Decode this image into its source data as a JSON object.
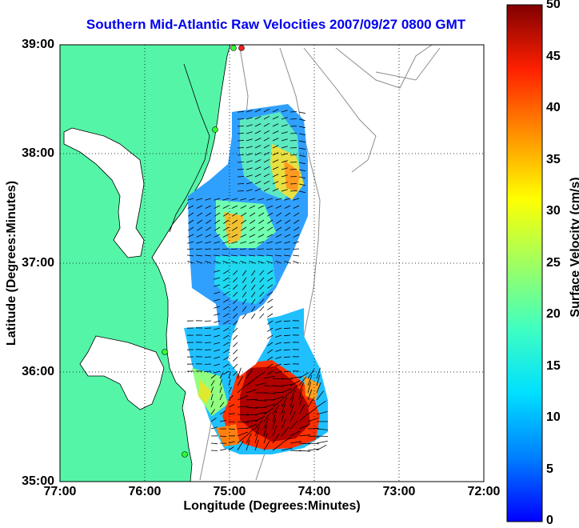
{
  "title": "Southern Mid-Atlantic Raw Velocities 2007/09/27 0800 GMT",
  "xlabel": "Longitude (Degrees:Minutes)",
  "ylabel": "Latitude (Degrees:Minutes)",
  "colorbar_label": "Surface Velocity (cm/s)",
  "x_ticks": [
    "77:00",
    "76:00",
    "75:00",
    "74:00",
    "73:00",
    "72:00"
  ],
  "y_ticks": [
    "39:00",
    "38:00",
    "37:00",
    "36:00",
    "35:00"
  ],
  "colorbar_ticks": [
    "50",
    "45",
    "40",
    "35",
    "30",
    "25",
    "20",
    "15",
    "10",
    "5",
    "0"
  ],
  "colors": {
    "land": "#55f5a8",
    "title": "#0000ee",
    "coast": "#000000",
    "bathymetry": "#8c8c8c"
  },
  "map_extent": {
    "lon_min": -77,
    "lon_max": -72,
    "lat_min": 35,
    "lat_max": 39
  },
  "velocity_range_cm_s": [
    0,
    50
  ]
}
